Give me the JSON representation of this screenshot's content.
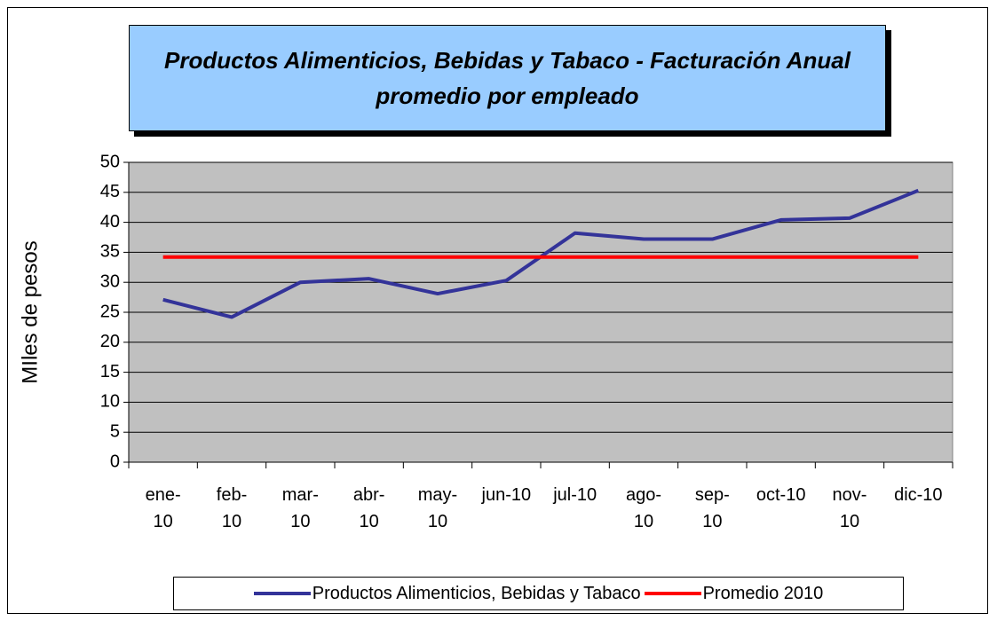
{
  "chart_data": {
    "type": "line",
    "title": "Productos Alimenticios, Bebidas y Tabaco - Facturación Anual promedio por empleado",
    "y_label": "MIles de pesos",
    "categories": [
      "ene-10",
      "feb-10",
      "mar-10",
      "abr-10",
      "may-10",
      "jun-10",
      "jul-10",
      "ago-10",
      "sep-10",
      "oct-10",
      "nov-10",
      "dic-10"
    ],
    "series": [
      {
        "name": "Productos Alimenticios, Bebidas y Tabaco",
        "color": "#333399",
        "values": [
          27.1,
          24.2,
          30.0,
          30.6,
          28.1,
          30.3,
          38.2,
          37.2,
          37.2,
          40.4,
          40.7,
          45.3
        ]
      },
      {
        "name": "Promedio 2010",
        "color": "#ff0000",
        "values": [
          34.2,
          34.2,
          34.2,
          34.2,
          34.2,
          34.2,
          34.2,
          34.2,
          34.2,
          34.2,
          34.2,
          34.2
        ]
      }
    ],
    "ylim": [
      0,
      50
    ],
    "yticks": [
      0,
      5,
      10,
      15,
      20,
      25,
      30,
      35,
      40,
      45,
      50
    ],
    "grid": true,
    "legend": "bottom"
  }
}
